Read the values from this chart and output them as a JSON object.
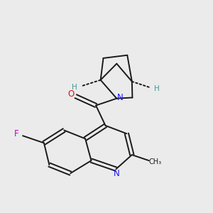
{
  "bg_color": "#ebebeb",
  "bond_color": "#1a1a1a",
  "N_color": "#1a1aee",
  "O_color": "#dd1111",
  "F_color": "#cc00cc",
  "H_color": "#3a9a9a",
  "figsize": [
    3.0,
    3.0
  ],
  "dpi": 100,
  "lw": 1.4,
  "xlim": [
    0,
    10
  ],
  "ylim": [
    0,
    10
  ]
}
